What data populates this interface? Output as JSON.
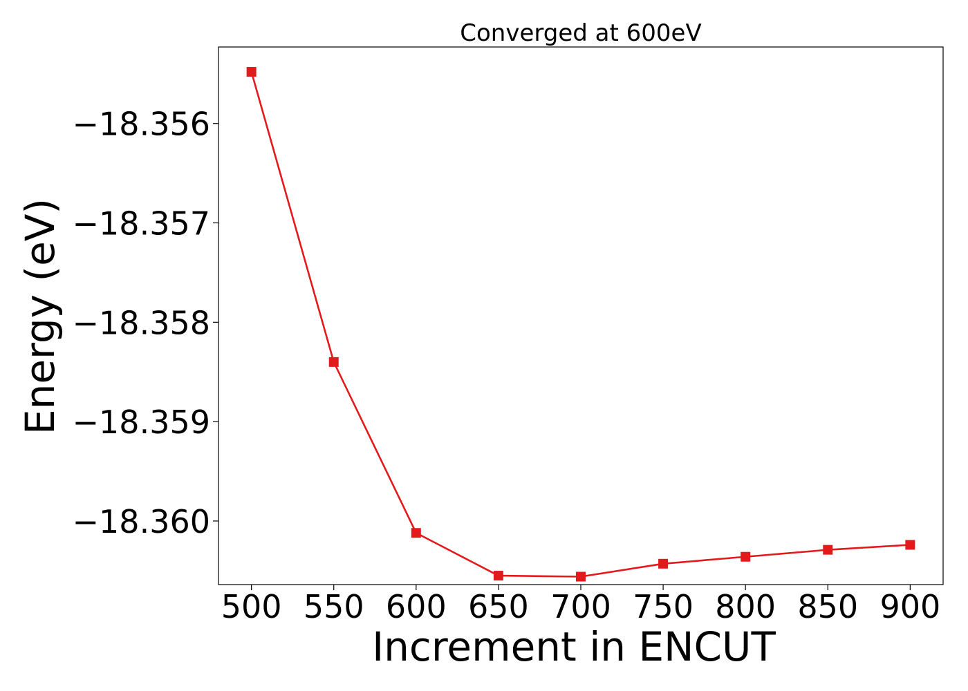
{
  "chart_data": {
    "type": "line",
    "title": "Converged at 600eV",
    "xlabel": "Increment in ENCUT",
    "ylabel": "Energy (eV)",
    "x": [
      500,
      550,
      600,
      650,
      700,
      750,
      800,
      850,
      900
    ],
    "series": [
      {
        "name": "",
        "values": [
          -18.35548,
          -18.3584,
          -18.36012,
          -18.36055,
          -18.36056,
          -18.36043,
          -18.36036,
          -18.36029,
          -18.36024
        ],
        "color": "#e31a1c",
        "marker": "square"
      }
    ],
    "xticks": [
      500,
      550,
      600,
      650,
      700,
      750,
      800,
      850,
      900
    ],
    "xtick_labels": [
      "500",
      "550",
      "600",
      "650",
      "700",
      "750",
      "800",
      "850",
      "900"
    ],
    "yticks": [
      -18.356,
      -18.357,
      -18.358,
      -18.359,
      -18.36
    ],
    "ytick_labels": [
      "−18.356",
      "−18.357",
      "−18.358",
      "−18.359",
      "−18.360"
    ],
    "xlim": [
      480,
      920
    ],
    "ylim": [
      -18.36064,
      -18.35523
    ],
    "grid": false,
    "legend": "none"
  }
}
